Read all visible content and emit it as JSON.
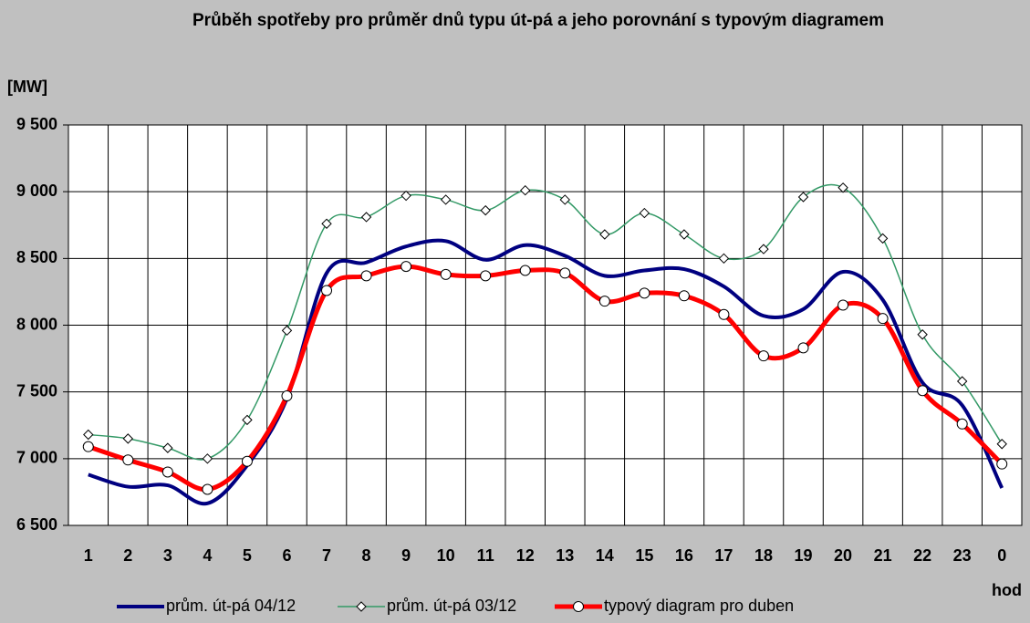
{
  "chart_data": {
    "type": "line",
    "title": "Průběh spotřeby pro průměr dnů typu út-pá a jeho porovnání s typovým diagramem",
    "y_label": "[MW]",
    "x_label": "hod",
    "categories": [
      "1",
      "2",
      "3",
      "4",
      "5",
      "6",
      "7",
      "8",
      "9",
      "10",
      "11",
      "12",
      "13",
      "14",
      "15",
      "16",
      "17",
      "18",
      "19",
      "20",
      "21",
      "22",
      "23",
      "0"
    ],
    "series": [
      {
        "name": "prům. út-pá 04/12",
        "color": "#000080",
        "width": 4,
        "marker": "none",
        "values": [
          6880,
          6790,
          6800,
          6665,
          6950,
          7450,
          8390,
          8470,
          8590,
          8630,
          8490,
          8600,
          8520,
          8370,
          8410,
          8420,
          8290,
          8070,
          8120,
          8400,
          8190,
          7570,
          7400,
          6780
        ]
      },
      {
        "name": "prům. út-pá 03/12",
        "color": "#339966",
        "width": 1.5,
        "marker": "diamond",
        "values": [
          7180,
          7150,
          7080,
          7000,
          7290,
          7960,
          8760,
          8810,
          8970,
          8940,
          8860,
          9010,
          8940,
          8680,
          8840,
          8680,
          8500,
          8570,
          8960,
          9030,
          8650,
          7930,
          7580,
          7110
        ]
      },
      {
        "name": "typový diagram pro duben",
        "color": "#ff0000",
        "width": 5,
        "marker": "circle",
        "values": [
          7090,
          6990,
          6900,
          6770,
          6980,
          7470,
          8260,
          8370,
          8440,
          8380,
          8370,
          8410,
          8390,
          8180,
          8240,
          8220,
          8080,
          7770,
          7830,
          8150,
          8050,
          7510,
          7260,
          6960
        ]
      }
    ],
    "ylim": [
      6500,
      9500
    ],
    "yticks": [
      {
        "value": 6500,
        "label": "6 500"
      },
      {
        "value": 7000,
        "label": "7 000"
      },
      {
        "value": 7500,
        "label": "7 500"
      },
      {
        "value": 8000,
        "label": "8 000"
      },
      {
        "value": 8500,
        "label": "8 500"
      },
      {
        "value": 9000,
        "label": "9 000"
      },
      {
        "value": 9500,
        "label": "9 500"
      }
    ],
    "grid": true,
    "smooth": true
  }
}
